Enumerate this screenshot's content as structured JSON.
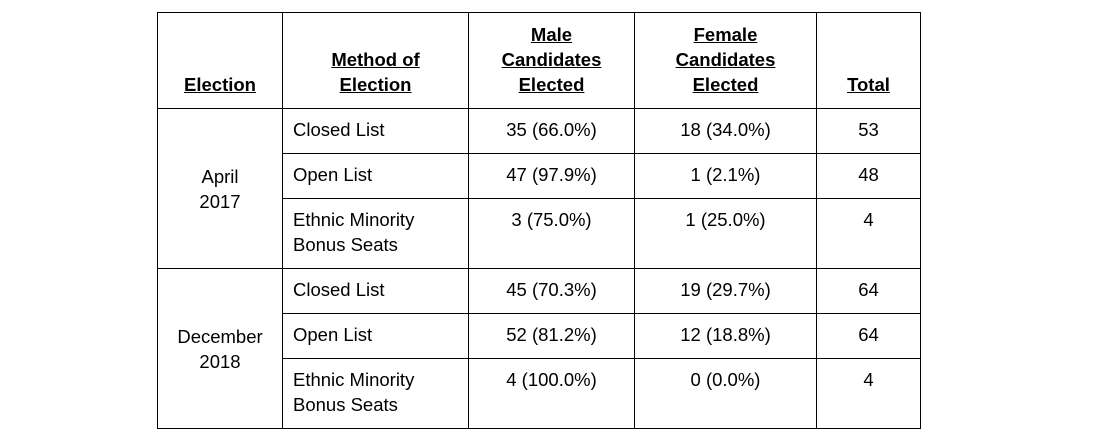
{
  "headers": {
    "election": "Election",
    "method": [
      "Method of",
      "Election"
    ],
    "male": [
      "Male",
      "Candidates",
      "Elected"
    ],
    "female": [
      "Female",
      "Candidates",
      "Elected"
    ],
    "total": "Total"
  },
  "elections": [
    {
      "name": [
        "April",
        "2017"
      ],
      "rows": [
        {
          "method": [
            "Closed List"
          ],
          "male": "35 (66.0%)",
          "female": "18 (34.0%)",
          "total": "53"
        },
        {
          "method": [
            "Open List"
          ],
          "male": "47 (97.9%)",
          "female": "1 (2.1%)",
          "total": "48"
        },
        {
          "method": [
            "Ethnic Minority",
            "Bonus Seats"
          ],
          "male": "3 (75.0%)",
          "female": "1 (25.0%)",
          "total": "4"
        }
      ]
    },
    {
      "name": [
        "December",
        "2018"
      ],
      "rows": [
        {
          "method": [
            "Closed List"
          ],
          "male": "45 (70.3%)",
          "female": "19 (29.7%)",
          "total": "64"
        },
        {
          "method": [
            "Open List"
          ],
          "male": "52 (81.2%)",
          "female": "12 (18.8%)",
          "total": "64"
        },
        {
          "method": [
            "Ethnic Minority",
            "Bonus Seats"
          ],
          "male": "4 (100.0%)",
          "female": "0 (0.0%)",
          "total": "4"
        }
      ]
    }
  ]
}
